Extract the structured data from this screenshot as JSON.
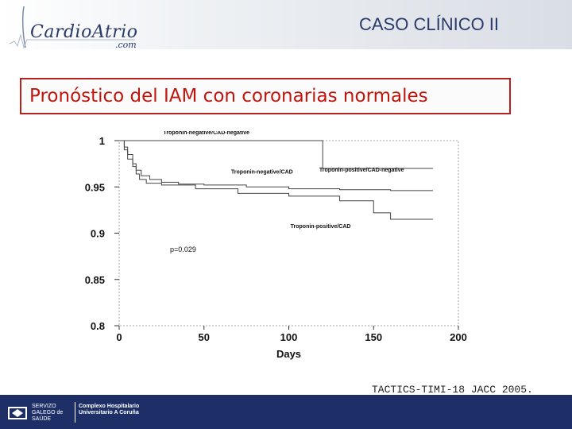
{
  "header": {
    "logo_text": "CardioAtrio",
    "logo_sub": ".com",
    "title": "CASO CLÍNICO II"
  },
  "subtitle": "Pronóstico del IAM con coronarias normales",
  "citation": "TACTICS-TIMI-18 JACC 2005.",
  "footer": {
    "org1": "SERVIZO GALEGO de SAÚDE",
    "org2": "Complexo Hospitalario Universitario A Coruña"
  },
  "chart_data": {
    "type": "line",
    "title": "",
    "xlabel": "Days",
    "ylabel": "",
    "xlim": [
      0,
      200
    ],
    "ylim": [
      0.8,
      1.0
    ],
    "x_ticks": [
      "0",
      "50",
      "100",
      "150",
      "200"
    ],
    "y_ticks": [
      "0.8",
      "0.85",
      "0.9",
      "0.95",
      "1"
    ],
    "annotation": "p=0.029",
    "series": [
      {
        "name": "Troponin-negative/CAD-negative",
        "points": [
          [
            0,
            1.0
          ],
          [
            90,
            1.0
          ]
        ]
      },
      {
        "name": "Troponin-positive/CAD-negative",
        "points": [
          [
            0,
            1.0
          ],
          [
            110,
            1.0
          ],
          [
            120,
            0.97
          ],
          [
            185,
            0.97
          ]
        ]
      },
      {
        "name": "Troponin-negative/CAD",
        "points": [
          [
            0,
            1.0
          ],
          [
            3,
            0.993
          ],
          [
            5,
            0.985
          ],
          [
            8,
            0.975
          ],
          [
            10,
            0.968
          ],
          [
            13,
            0.962
          ],
          [
            18,
            0.958
          ],
          [
            25,
            0.955
          ],
          [
            35,
            0.953
          ],
          [
            50,
            0.952
          ],
          [
            75,
            0.95
          ],
          [
            100,
            0.948
          ],
          [
            130,
            0.947
          ],
          [
            160,
            0.946
          ],
          [
            185,
            0.946
          ]
        ]
      },
      {
        "name": "Troponin-positive/CAD",
        "points": [
          [
            0,
            1.0
          ],
          [
            3,
            0.99
          ],
          [
            5,
            0.98
          ],
          [
            8,
            0.972
          ],
          [
            10,
            0.964
          ],
          [
            12,
            0.958
          ],
          [
            16,
            0.954
          ],
          [
            25,
            0.952
          ],
          [
            45,
            0.948
          ],
          [
            70,
            0.943
          ],
          [
            100,
            0.94
          ],
          [
            130,
            0.935
          ],
          [
            150,
            0.922
          ],
          [
            160,
            0.915
          ],
          [
            185,
            0.915
          ]
        ]
      }
    ]
  }
}
